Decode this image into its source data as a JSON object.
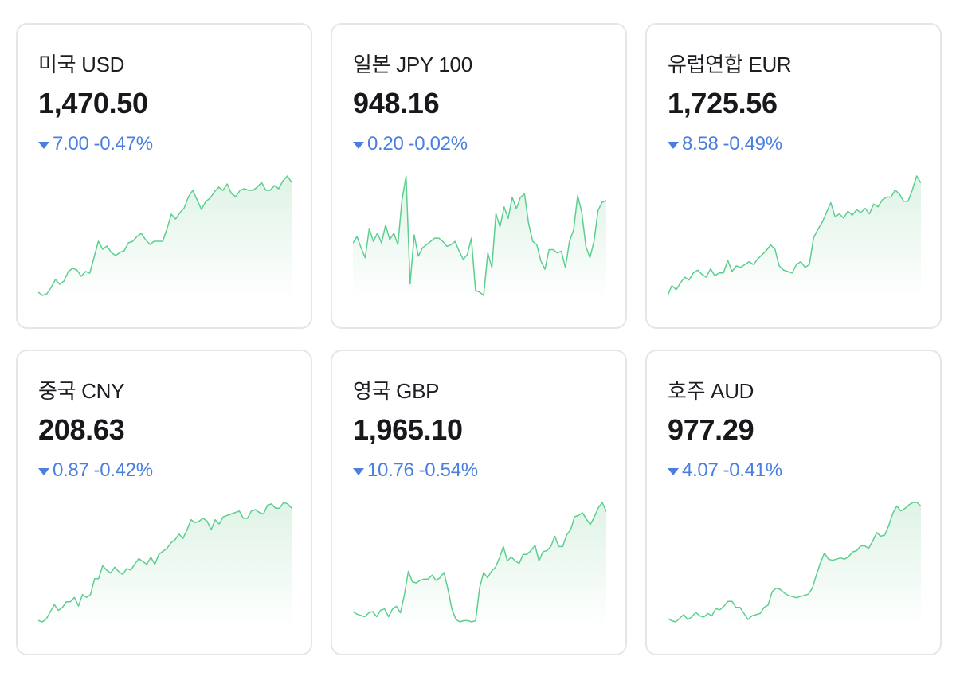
{
  "colors": {
    "line": "#5ccf8f",
    "fill_top": "#dff3e6",
    "down": "#4a7fe0"
  },
  "cards": [
    {
      "name": "미국 USD",
      "price": "1,470.50",
      "change": "7.00",
      "pct": "-0.47%",
      "direction": "down",
      "direction_icon": "down-triangle-icon"
    },
    {
      "name": "일본 JPY 100",
      "price": "948.16",
      "change": "0.20",
      "pct": "-0.02%",
      "direction": "down",
      "direction_icon": "down-triangle-icon"
    },
    {
      "name": "유럽연합 EUR",
      "price": "1,725.56",
      "change": "8.58",
      "pct": "-0.49%",
      "direction": "down",
      "direction_icon": "down-triangle-icon"
    },
    {
      "name": "중국 CNY",
      "price": "208.63",
      "change": "0.87",
      "pct": "-0.42%",
      "direction": "down",
      "direction_icon": "down-triangle-icon"
    },
    {
      "name": "영국 GBP",
      "price": "1,965.10",
      "change": "10.76",
      "pct": "-0.54%",
      "direction": "down",
      "direction_icon": "down-triangle-icon"
    },
    {
      "name": "호주 AUD",
      "price": "977.29",
      "change": "4.07",
      "pct": "-0.41%",
      "direction": "down",
      "direction_icon": "down-triangle-icon"
    }
  ],
  "chart_data": [
    {
      "type": "area",
      "series": [
        {
          "values": [
            6,
            4,
            5,
            9,
            14,
            11,
            13,
            19,
            21,
            20,
            16,
            19,
            18,
            28,
            38,
            33,
            35,
            31,
            29,
            31,
            32,
            37,
            38,
            41,
            43,
            39,
            36,
            38,
            38,
            38,
            46,
            55,
            52,
            56,
            59,
            66,
            70,
            64,
            58,
            63,
            65,
            69,
            72,
            70,
            74,
            68,
            66,
            70,
            71,
            70,
            70,
            72,
            75,
            70,
            70,
            73,
            71,
            76,
            79,
            75
          ]
        }
      ]
    },
    {
      "type": "area",
      "series": [
        {
          "values": [
            38,
            42,
            35,
            29,
            47,
            39,
            44,
            38,
            49,
            40,
            44,
            37,
            64,
            79,
            13,
            43,
            30,
            35,
            37,
            39,
            41,
            41,
            39,
            36,
            37,
            39,
            33,
            28,
            31,
            41,
            9,
            8,
            6,
            32,
            23,
            56,
            48,
            60,
            53,
            66,
            59,
            66,
            68,
            50,
            39,
            37,
            27,
            22,
            34,
            34,
            32,
            33,
            23,
            39,
            46,
            67,
            57,
            36,
            29,
            39,
            58,
            63,
            64
          ]
        }
      ]
    },
    {
      "type": "area",
      "series": [
        {
          "values": [
            4,
            11,
            8,
            13,
            17,
            15,
            20,
            22,
            19,
            17,
            23,
            18,
            20,
            20,
            29,
            21,
            25,
            24,
            26,
            28,
            26,
            30,
            33,
            36,
            40,
            37,
            25,
            22,
            21,
            20,
            26,
            28,
            24,
            26,
            45,
            51,
            56,
            63,
            70,
            60,
            62,
            59,
            64,
            61,
            65,
            63,
            66,
            62,
            69,
            67,
            72,
            74,
            74,
            79,
            76,
            71,
            71,
            79,
            89,
            84
          ]
        }
      ]
    },
    {
      "type": "area",
      "series": [
        {
          "values": [
            4,
            3,
            5,
            10,
            15,
            11,
            13,
            17,
            17,
            20,
            14,
            22,
            20,
            22,
            33,
            33,
            42,
            39,
            37,
            41,
            38,
            36,
            40,
            39,
            43,
            47,
            45,
            43,
            48,
            43,
            50,
            52,
            54,
            58,
            60,
            64,
            61,
            67,
            74,
            72,
            73,
            75,
            73,
            67,
            74,
            71,
            76,
            77,
            78,
            79,
            80,
            75,
            75,
            80,
            81,
            79,
            78,
            84,
            85,
            82,
            82,
            86,
            85,
            82
          ]
        }
      ]
    },
    {
      "type": "area",
      "series": [
        {
          "values": [
            8,
            6,
            5,
            4,
            7,
            8,
            4,
            9,
            10,
            4,
            10,
            12,
            7,
            21,
            39,
            31,
            30,
            32,
            33,
            33,
            36,
            32,
            34,
            38,
            25,
            10,
            2,
            0,
            1,
            1,
            0,
            1,
            26,
            38,
            34,
            39,
            42,
            49,
            58,
            47,
            50,
            47,
            45,
            52,
            52,
            55,
            59,
            47,
            54,
            55,
            58,
            66,
            58,
            58,
            67,
            71,
            81,
            82,
            84,
            79,
            75,
            81,
            88,
            92,
            85
          ]
        }
      ]
    },
    {
      "type": "area",
      "series": [
        {
          "values": [
            3,
            1,
            0,
            3,
            6,
            2,
            4,
            8,
            5,
            4,
            7,
            5,
            11,
            10,
            13,
            17,
            17,
            12,
            12,
            7,
            2,
            5,
            6,
            7,
            12,
            14,
            25,
            28,
            27,
            24,
            22,
            21,
            20,
            21,
            22,
            23,
            28,
            39,
            49,
            57,
            52,
            51,
            52,
            53,
            52,
            54,
            58,
            59,
            63,
            63,
            61,
            67,
            74,
            71,
            72,
            80,
            90,
            96,
            92,
            94,
            97,
            99,
            99,
            96
          ]
        }
      ]
    }
  ]
}
